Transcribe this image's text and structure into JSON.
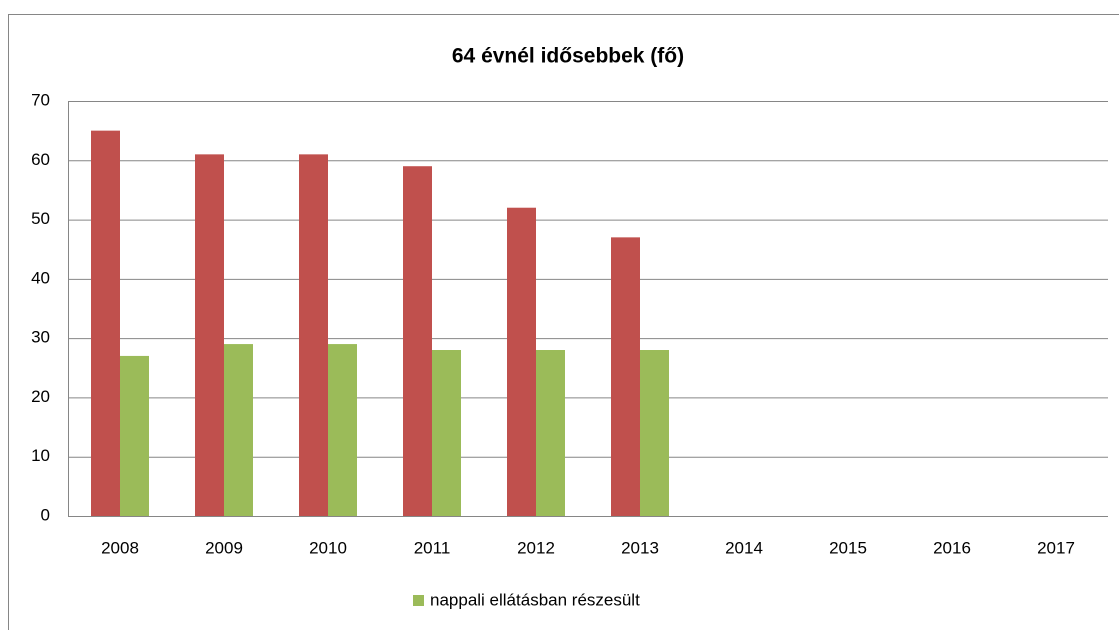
{
  "chart_data": {
    "type": "bar",
    "title": "64 évnél idősebbek (fő)",
    "categories": [
      "2008",
      "2009",
      "2010",
      "2011",
      "2012",
      "2013",
      "2014",
      "2015",
      "2016",
      "2017"
    ],
    "series": [
      {
        "color": "#c0504d",
        "values": [
          65,
          61,
          61,
          59,
          52,
          47,
          null,
          null,
          null,
          null
        ]
      },
      {
        "name": "nappali ellátásban részesült",
        "color": "#9bbb59",
        "values": [
          27,
          29,
          29,
          28,
          28,
          28,
          null,
          null,
          null,
          null
        ]
      }
    ],
    "ylim": [
      0,
      70
    ],
    "yticks": [
      0,
      10,
      20,
      30,
      40,
      50,
      60,
      70
    ],
    "grid": true,
    "legend": "bottom"
  }
}
